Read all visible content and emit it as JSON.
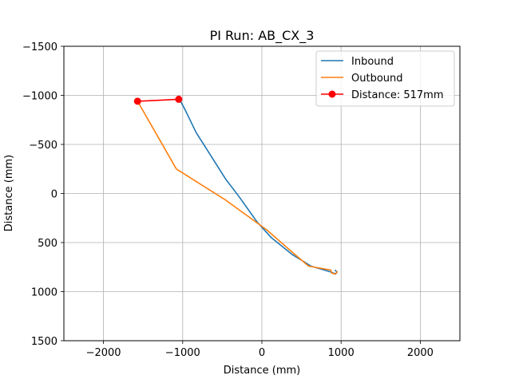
{
  "chart_data": {
    "type": "line",
    "title": "PI Run: AB_CX_3",
    "xlabel": "Distance (mm)",
    "ylabel": "Distance (mm)",
    "xlim": [
      -2500,
      2500
    ],
    "ylim": [
      1500,
      -1500
    ],
    "y_inverted": true,
    "xticks": [
      -2000,
      -1000,
      0,
      1000,
      2000
    ],
    "xtick_labels": [
      "−2000",
      "−1000",
      "0",
      "1000",
      "2000"
    ],
    "yticks": [
      -1500,
      -1000,
      -500,
      0,
      500,
      1000,
      1500
    ],
    "ytick_labels": [
      "−1500",
      "−1000",
      "−500",
      "0",
      "500",
      "1000",
      "1500"
    ],
    "grid": true,
    "legend_position": "top-right",
    "series": [
      {
        "name": "Inbound",
        "color": "#1f77b4",
        "marker": "none",
        "x": [
          -1040,
          -980,
          -830,
          -640,
          -460,
          -290,
          -60,
          120,
          380,
          620,
          870,
          930,
          950,
          920
        ],
        "y": [
          -960,
          -870,
          -620,
          -380,
          -150,
          30,
          290,
          450,
          620,
          740,
          800,
          820,
          800,
          780
        ]
      },
      {
        "name": "Outbound",
        "color": "#ff7f0e",
        "marker": "none",
        "x": [
          -1570,
          -1080,
          -470,
          60,
          400,
          590,
          870,
          880,
          920,
          940,
          950
        ],
        "y": [
          -940,
          -250,
          60,
          370,
          610,
          740,
          780,
          810,
          820,
          810,
          790
        ]
      },
      {
        "name": "Distance: 517mm",
        "color": "#ff0000",
        "marker": "circle",
        "x": [
          -1570,
          -1050
        ],
        "y": [
          -940,
          -960
        ]
      }
    ]
  }
}
